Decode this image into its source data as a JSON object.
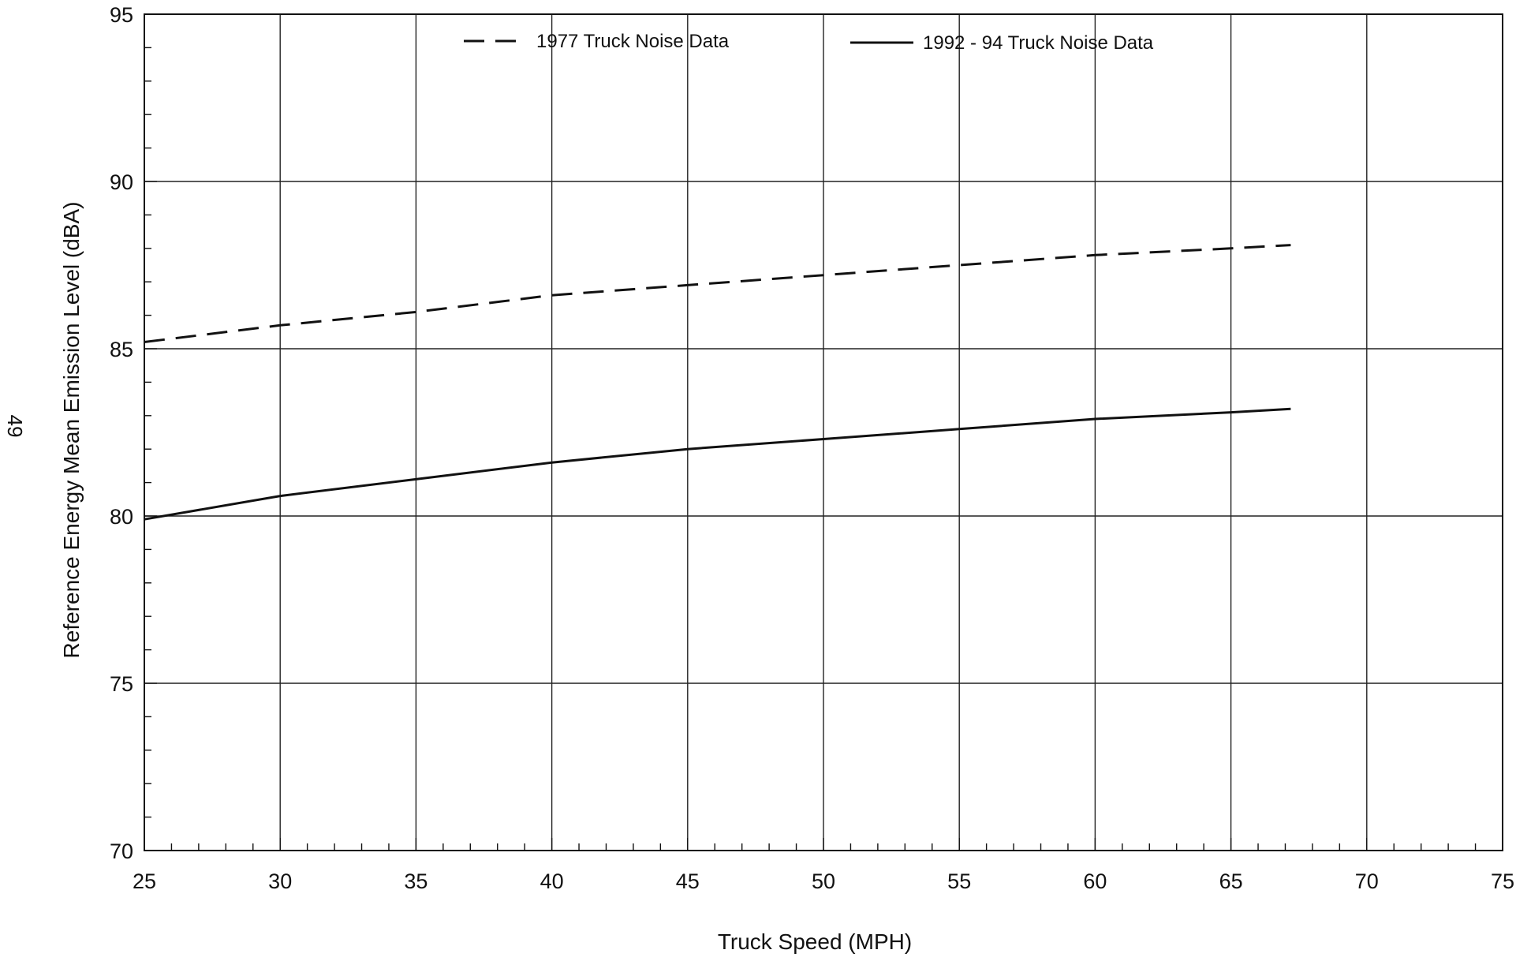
{
  "page_number": "49",
  "chart_data": {
    "type": "line",
    "title": "",
    "xlabel": "Truck Speed (MPH)",
    "ylabel": "Reference Energy Mean Emission Level (dBA)",
    "xlim": [
      25,
      75
    ],
    "ylim": [
      70,
      95
    ],
    "xticks": [
      25,
      30,
      35,
      40,
      45,
      50,
      55,
      60,
      65,
      70,
      75
    ],
    "yticks": [
      70,
      75,
      80,
      85,
      90,
      95
    ],
    "x_minor_step": 1,
    "y_minor_step": 1,
    "grid": true,
    "legend_position": "top",
    "series": [
      {
        "name": "1977 Truck Noise Data",
        "style": "dashed",
        "color": "#111111",
        "x": [
          25,
          30,
          35,
          40,
          45,
          50,
          55,
          60,
          65,
          67.2
        ],
        "y": [
          85.2,
          85.7,
          86.1,
          86.6,
          86.9,
          87.2,
          87.5,
          87.8,
          88.0,
          88.1
        ]
      },
      {
        "name": "1992 - 94 Truck Noise Data",
        "style": "solid",
        "color": "#111111",
        "x": [
          25,
          30,
          35,
          40,
          45,
          50,
          55,
          60,
          65,
          67.2
        ],
        "y": [
          79.9,
          80.6,
          81.1,
          81.6,
          82.0,
          82.3,
          82.6,
          82.9,
          83.1,
          83.2
        ]
      }
    ]
  }
}
